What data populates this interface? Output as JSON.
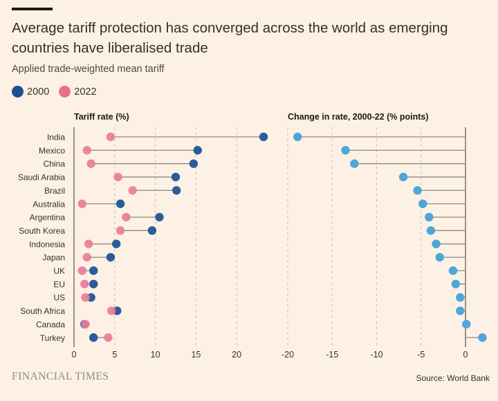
{
  "header": {
    "title": "Average tariff protection has converged across the world as emerging countries have liberalised trade",
    "subtitle": "Applied trade-weighted mean tariff"
  },
  "legend": {
    "items": [
      {
        "label": "2000",
        "color": "#1b4f8e"
      },
      {
        "label": "2022",
        "color": "#e8708f"
      }
    ]
  },
  "footer": {
    "logo_text": "FINANCIAL TIMES",
    "source": "Source: World Bank"
  },
  "colors": {
    "color_2000": "#2b5c99",
    "color_2022": "#ec7c98",
    "color_change": "#4ea6d9",
    "connector": "#8c8884",
    "grid": "#c9c1b8"
  },
  "chart_data": [
    {
      "type": "dumbbell",
      "title": "Tariff rate (%)",
      "categories": [
        "India",
        "Mexico",
        "China",
        "Saudi Arabia",
        "Brazil",
        "Australia",
        "Argentina",
        "South Korea",
        "Indonesia",
        "Japan",
        "UK",
        "EU",
        "US",
        "South Africa",
        "Canada",
        "Turkey"
      ],
      "series": [
        {
          "name": "2000",
          "values": [
            23.3,
            15.2,
            14.7,
            12.5,
            12.6,
            5.7,
            10.5,
            9.6,
            5.2,
            4.5,
            2.4,
            2.4,
            2.1,
            5.3,
            1.3,
            2.4
          ]
        },
        {
          "name": "2022",
          "values": [
            4.5,
            1.6,
            2.1,
            5.4,
            7.2,
            1.0,
            6.4,
            5.7,
            1.8,
            1.6,
            1.0,
            1.3,
            1.4,
            4.6,
            1.4,
            4.2
          ]
        }
      ],
      "xlim": [
        0,
        25
      ],
      "xticks": [
        0,
        5,
        10,
        15,
        20
      ],
      "grid": true
    },
    {
      "type": "lollipop",
      "title": "Change in rate, 2000-22 (% points)",
      "categories": [
        "India",
        "Mexico",
        "China",
        "Saudi Arabia",
        "Brazil",
        "Australia",
        "Argentina",
        "South Korea",
        "Indonesia",
        "Japan",
        "UK",
        "EU",
        "US",
        "South Africa",
        "Canada",
        "Turkey"
      ],
      "values": [
        -18.9,
        -13.5,
        -12.5,
        -7.0,
        -5.4,
        -4.8,
        -4.1,
        -3.9,
        -3.3,
        -2.9,
        -1.4,
        -1.1,
        -0.6,
        -0.6,
        0.1,
        1.9
      ],
      "xlim": [
        -21,
        2.5
      ],
      "xticks": [
        -20,
        -15,
        -10,
        -5,
        0
      ],
      "grid": true
    }
  ]
}
